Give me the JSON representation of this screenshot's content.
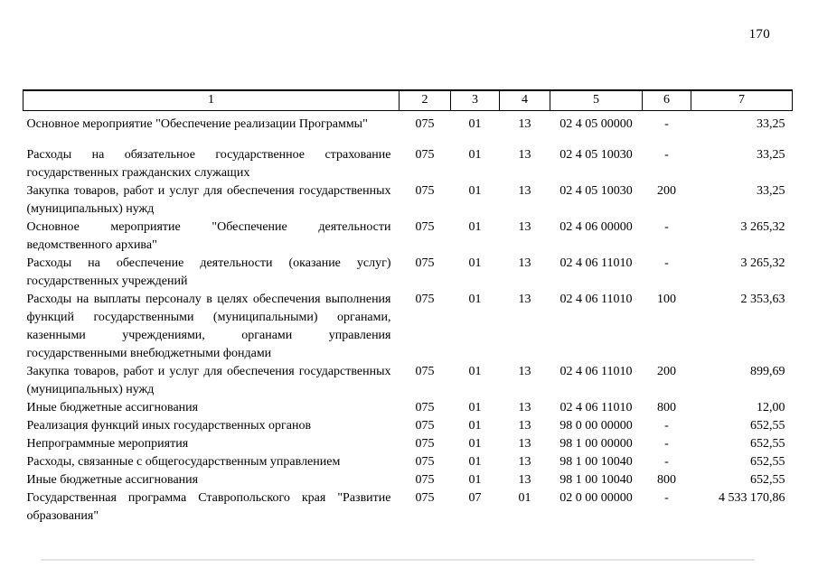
{
  "page": {
    "number": "170"
  },
  "table": {
    "headers": [
      "1",
      "2",
      "3",
      "4",
      "5",
      "6",
      "7"
    ],
    "rows": [
      {
        "cells": [
          "Основное мероприятие \"Обеспечение реализации Программы\"",
          "075",
          "01",
          "13",
          "02 4 05 00000",
          "-",
          "33,25"
        ]
      },
      {
        "cells": [
          "Расходы на обязательное государственное страхование государственных гражданских служащих",
          "075",
          "01",
          "13",
          "02 4 05 10030",
          "-",
          "33,25"
        ]
      },
      {
        "cells": [
          "Закупка товаров, работ и услуг для обеспечения государственных (муниципальных) нужд",
          "075",
          "01",
          "13",
          "02 4 05 10030",
          "200",
          "33,25"
        ]
      },
      {
        "cells": [
          "Основное мероприятие \"Обеспечение деятельности ведомственного архива\"",
          "075",
          "01",
          "13",
          "02 4 06 00000",
          "-",
          "3 265,32"
        ]
      },
      {
        "cells": [
          "Расходы на обеспечение деятельности (оказание услуг) государственных учреждений",
          "075",
          "01",
          "13",
          "02 4 06 11010",
          "-",
          "3 265,32"
        ]
      },
      {
        "cells": [
          "Расходы на выплаты персоналу в целях обеспечения выполнения функций государственными (муниципальными) органами, казенными учреждениями, органами управления государственными внебюджетными фондами",
          "075",
          "01",
          "13",
          "02 4 06 11010",
          "100",
          "2 353,63"
        ]
      },
      {
        "cells": [
          "Закупка товаров, работ и услуг для обеспечения государственных (муниципальных) нужд",
          "075",
          "01",
          "13",
          "02 4 06 11010",
          "200",
          "899,69"
        ]
      },
      {
        "cells": [
          "Иные бюджетные ассигнования",
          "075",
          "01",
          "13",
          "02 4 06 11010",
          "800",
          "12,00"
        ]
      },
      {
        "cells": [
          "Реализация функций иных государственных органов",
          "075",
          "01",
          "13",
          "98 0 00 00000",
          "-",
          "652,55"
        ]
      },
      {
        "cells": [
          "Непрограммные мероприятия",
          "075",
          "01",
          "13",
          "98 1 00 00000",
          "-",
          "652,55"
        ]
      },
      {
        "cells": [
          "Расходы, связанные с общегосударственным управлением",
          "075",
          "01",
          "13",
          "98 1 00 10040",
          "-",
          "652,55"
        ]
      },
      {
        "cells": [
          "Иные бюджетные ассигнования",
          "075",
          "01",
          "13",
          "98 1 00 10040",
          "800",
          "652,55"
        ]
      },
      {
        "cells": [
          "Государственная программа Ставропольского края \"Развитие образования\"",
          "075",
          "07",
          "01",
          "02 0 00 00000",
          "-",
          "4 533 170,86"
        ]
      }
    ]
  }
}
